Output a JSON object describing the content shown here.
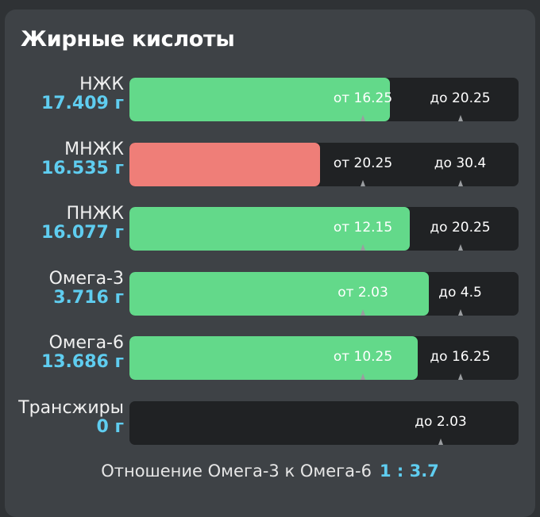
{
  "card": {
    "title": "Жирные кислоты"
  },
  "rows": [
    {
      "label": "НЖК",
      "value": "17.409 г",
      "status": "ok",
      "fill": 0.67,
      "markers": [
        {
          "text": "от 16.25",
          "pos": 0.6,
          "tick": 0.6
        },
        {
          "text": "до 20.25",
          "pos": 0.85,
          "tick": 0.85
        }
      ]
    },
    {
      "label": "МНЖК",
      "value": "16.535 г",
      "status": "bad",
      "fill": 0.49,
      "markers": [
        {
          "text": "от 20.25",
          "pos": 0.6,
          "tick": 0.6
        },
        {
          "text": "до 30.4",
          "pos": 0.85,
          "tick": 0.85
        }
      ]
    },
    {
      "label": "ПНЖК",
      "value": "16.077 г",
      "status": "ok",
      "fill": 0.72,
      "markers": [
        {
          "text": "от 12.15",
          "pos": 0.6,
          "tick": 0.6
        },
        {
          "text": "до 20.25",
          "pos": 0.85,
          "tick": 0.85
        }
      ]
    },
    {
      "label": "Омега-3",
      "value": "3.716 г",
      "status": "ok",
      "fill": 0.77,
      "markers": [
        {
          "text": "от 2.03",
          "pos": 0.6,
          "tick": 0.6
        },
        {
          "text": "до 4.5",
          "pos": 0.85,
          "tick": 0.85
        }
      ]
    },
    {
      "label": "Омега-6",
      "value": "13.686 г",
      "status": "ok",
      "fill": 0.74,
      "markers": [
        {
          "text": "от 10.25",
          "pos": 0.6,
          "tick": 0.6
        },
        {
          "text": "до 16.25",
          "pos": 0.85,
          "tick": 0.85
        }
      ]
    },
    {
      "label": "Трансжиры",
      "value": "0 г",
      "status": "ok",
      "fill": 0.0,
      "markers": [
        {
          "text": "до 2.03",
          "pos": 0.8,
          "tick": 0.8
        }
      ]
    }
  ],
  "ratio": {
    "label": "Отношение Омега-3 к Омега-6",
    "value": "1 : 3.7"
  },
  "colors": {
    "ok": "#63d98a",
    "bad": "#ef7e78",
    "accent": "#5fcdf0"
  }
}
